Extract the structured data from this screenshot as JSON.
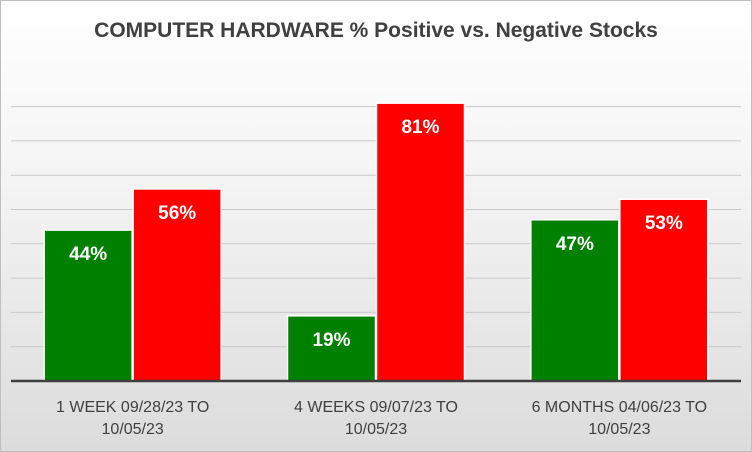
{
  "chart_data": {
    "type": "bar",
    "title": "COMPUTER HARDWARE % Positive vs. Negative Stocks",
    "categories": [
      [
        "1 WEEK 09/28/23 TO",
        "10/05/23"
      ],
      [
        "4 WEEKS 09/07/23 TO",
        "10/05/23"
      ],
      [
        "6 MONTHS 04/06/23 TO",
        "10/05/23"
      ]
    ],
    "series": [
      {
        "values": [
          44,
          19,
          47
        ],
        "labels": [
          "44%",
          "19%",
          "47%"
        ],
        "color": "#008000"
      },
      {
        "values": [
          56,
          81,
          53
        ],
        "labels": [
          "56%",
          "81%",
          "53%"
        ],
        "color": "#ff0000"
      }
    ],
    "ylim": [
      0,
      80
    ],
    "gridlines": true,
    "legend": "none"
  }
}
